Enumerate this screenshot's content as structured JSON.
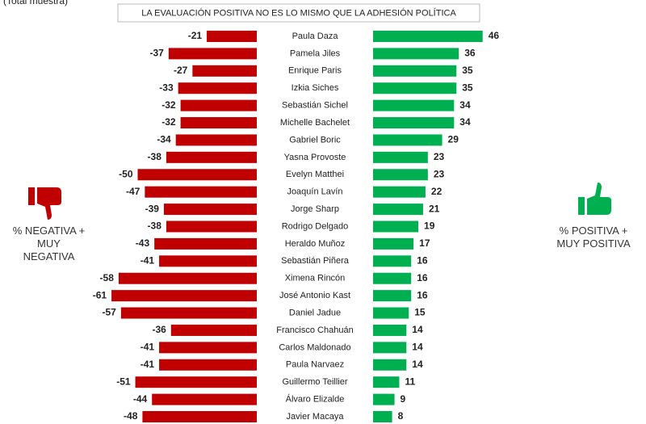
{
  "chart_data": {
    "type": "diverging-bar",
    "subtitle": "(Total muestra)",
    "title": "LA EVALUACIÓN POSITIVA NO ES LO MISMO QUE LA ADHESIÓN POLÍTICA",
    "categories": [
      "Paula Daza",
      "Pamela Jiles",
      "Enrique Paris",
      "Izkia Siches",
      "Sebastián Sichel",
      "Michelle Bachelet",
      "Gabriel Boric",
      "Yasna Provoste",
      "Evelyn Matthei",
      "Joaquín Lavín",
      "Jorge Sharp",
      "Rodrigo Delgado",
      "Heraldo Muñoz",
      "Sebastián Piñera",
      "Ximena Rincón",
      "José Antonio Kast",
      "Daniel Jadue",
      "Francisco Chahuán",
      "Carlos Maldonado",
      "Paula Narvaez",
      "Guillermo Teillier",
      "Álvaro Elizalde",
      "Javier Macaya"
    ],
    "series": [
      {
        "name": "% NEGATIVA + MUY NEGATIVA",
        "color": "#c00000",
        "values": [
          -21,
          -37,
          -27,
          -33,
          -32,
          -32,
          -34,
          -38,
          -50,
          -47,
          -39,
          -38,
          -43,
          -41,
          -58,
          -61,
          -57,
          -36,
          -41,
          -41,
          -51,
          -44,
          -48
        ]
      },
      {
        "name": "% POSITIVA + MUY POSITIVA",
        "color": "#00b050",
        "values": [
          46,
          36,
          35,
          35,
          34,
          34,
          29,
          23,
          23,
          22,
          21,
          19,
          17,
          16,
          16,
          16,
          15,
          14,
          14,
          14,
          11,
          9,
          8
        ]
      }
    ]
  }
}
